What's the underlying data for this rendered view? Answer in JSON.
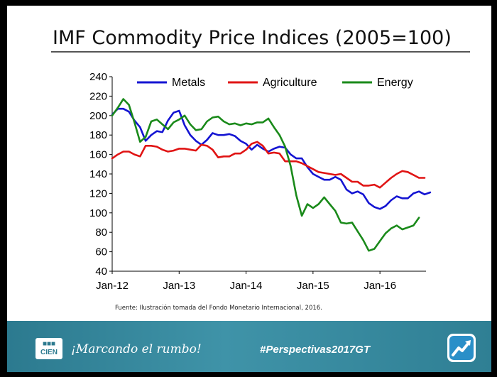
{
  "slide_title": "IMF Commodity Price Indices (2005=100)",
  "source": "Fuente: Ilustración tomada del Fondo Monetario Internacional, 2016.",
  "footer": {
    "logo_top": "■■■",
    "logo_bottom": "CIEN",
    "tagline": "¡Marcando el rumbo!",
    "hashtag": "#Perspectivas2017GT",
    "icon": "growth-arrow-icon"
  },
  "colors": {
    "metals": "#1414d2",
    "agriculture": "#e01414",
    "energy": "#1a8a1a"
  },
  "chart_data": {
    "type": "line",
    "title": "IMF Commodity Price Indices (2005=100)",
    "xlabel": "",
    "ylabel": "",
    "ylim": [
      40,
      240
    ],
    "yticks": [
      "40",
      "60",
      "80",
      "100",
      "120",
      "140",
      "160",
      "180",
      "200",
      "220",
      "240"
    ],
    "xtick_labels": [
      "Jan-12",
      "Jan-13",
      "Jan-14",
      "Jan-15",
      "Jan-16"
    ],
    "legend": [
      "Metals",
      "Agriculture",
      "Energy"
    ],
    "x_start": "Jan-12",
    "x_freq": "monthly",
    "series": [
      {
        "name": "Metals",
        "color": "#1414d2",
        "values": [
          201,
          207,
          207,
          204,
          195,
          188,
          174,
          180,
          184,
          183,
          195,
          203,
          205,
          190,
          180,
          174,
          170,
          175,
          182,
          180,
          180,
          181,
          179,
          174,
          171,
          165,
          170,
          166,
          163,
          166,
          168,
          167,
          160,
          156,
          156,
          147,
          140,
          137,
          134,
          134,
          137,
          134,
          124,
          120,
          122,
          119,
          110,
          106,
          104,
          107,
          113,
          117,
          115,
          115,
          120,
          122,
          119,
          121
        ]
      },
      {
        "name": "Agriculture",
        "color": "#e01414",
        "values": [
          156,
          160,
          163,
          163,
          160,
          158,
          169,
          169,
          168,
          165,
          163,
          164,
          166,
          166,
          165,
          164,
          170,
          169,
          165,
          157,
          158,
          158,
          161,
          161,
          165,
          171,
          173,
          169,
          161,
          162,
          161,
          153,
          153,
          153,
          151,
          148,
          145,
          142,
          141,
          140,
          139,
          140,
          136,
          132,
          132,
          128,
          128,
          129,
          126,
          131,
          136,
          140,
          143,
          142,
          139,
          136,
          136
        ]
      },
      {
        "name": "Energy",
        "color": "#1a8a1a",
        "values": [
          200,
          208,
          217,
          211,
          193,
          173,
          178,
          194,
          196,
          191,
          186,
          193,
          196,
          200,
          191,
          185,
          186,
          194,
          198,
          199,
          194,
          191,
          192,
          190,
          192,
          191,
          193,
          193,
          197,
          188,
          180,
          168,
          148,
          118,
          97,
          109,
          105,
          109,
          116,
          109,
          102,
          90,
          89,
          90,
          81,
          72,
          61,
          63,
          71,
          79,
          84,
          87,
          83,
          85,
          87,
          95
        ]
      }
    ]
  }
}
